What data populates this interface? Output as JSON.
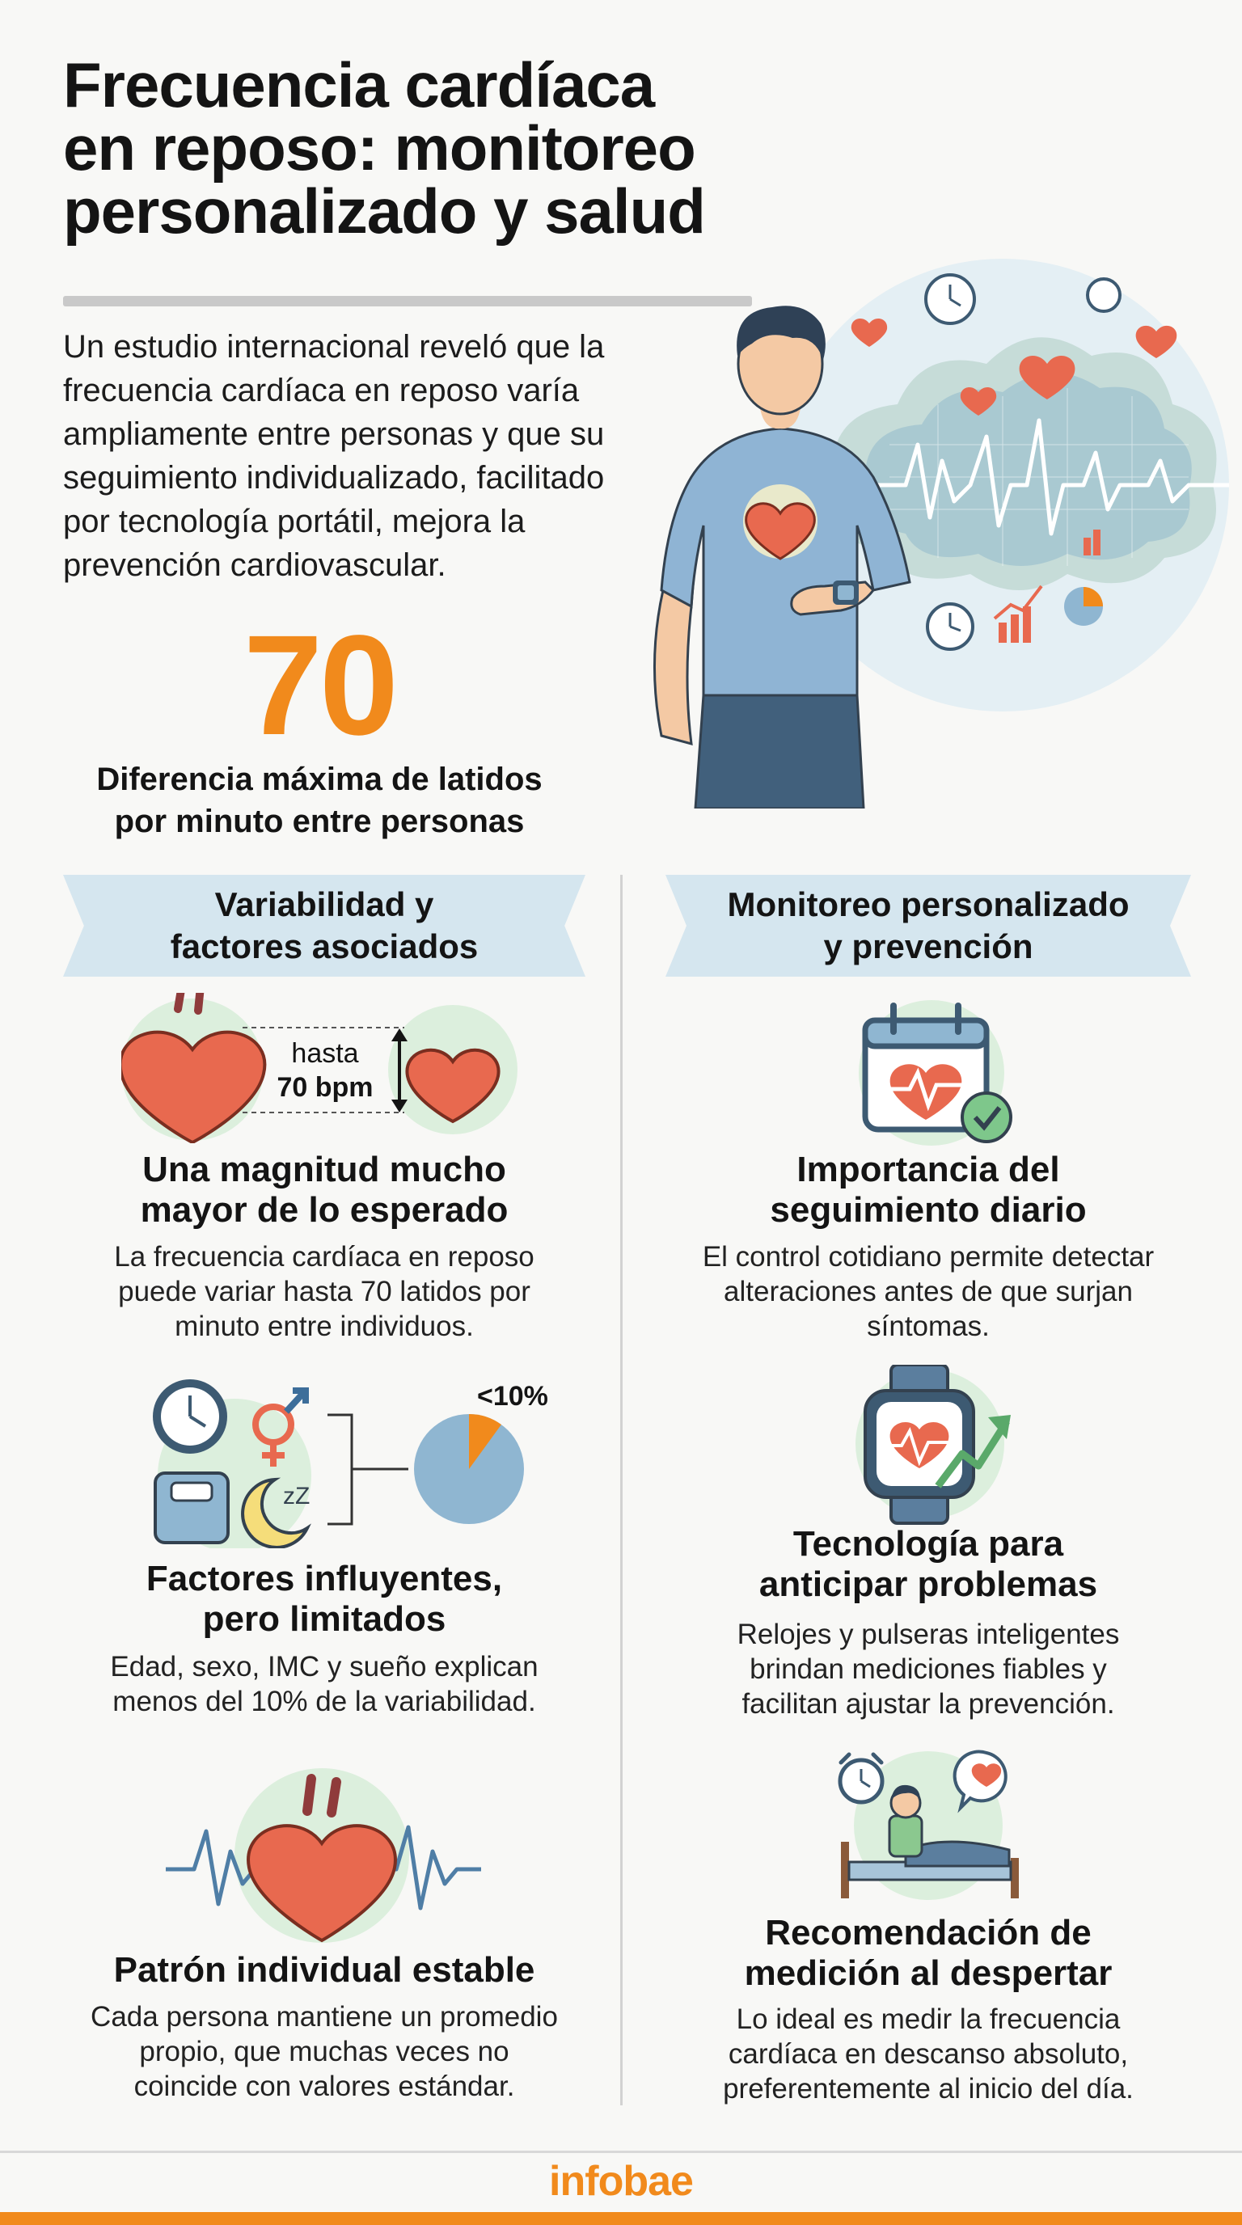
{
  "title": {
    "lines": [
      "Frecuencia cardíaca",
      "en reposo: monitoreo",
      "personalizado y salud"
    ]
  },
  "intro": {
    "lines": [
      "Un estudio internacional reveló que la",
      "frecuencia cardíaca en reposo varía",
      "ampliamente entre personas y que su",
      "seguimiento individualizado, facilitado",
      "por tecnología portátil, mejora la",
      "prevención cardiovascular."
    ]
  },
  "stat": {
    "value": "70",
    "caption_lines": [
      "Diferencia máxima de latidos",
      "por minuto entre personas"
    ]
  },
  "left_column": {
    "header_lines": [
      "Variabilidad y",
      "factores asociados"
    ],
    "cards": [
      {
        "illustration": {
          "label_top": "hasta",
          "label_bottom": "70 bpm"
        },
        "title_lines": [
          "Una magnitud mucho",
          "mayor de lo esperado"
        ],
        "body_lines": [
          "La frecuencia cardíaca en reposo",
          "puede variar hasta 70 latidos por",
          "minuto entre individuos."
        ]
      },
      {
        "illustration": {
          "pie_label": "<10%",
          "pie_fraction": 0.1
        },
        "title_lines": [
          "Factores influyentes,",
          "pero limitados"
        ],
        "body_lines": [
          "Edad, sexo, IMC y sueño explican",
          "menos del 10% de la variabilidad."
        ]
      },
      {
        "title_lines": [
          "Patrón individual estable"
        ],
        "body_lines": [
          "Cada persona mantiene un promedio",
          "propio, que muchas veces no",
          "coincide con valores estándar."
        ]
      }
    ]
  },
  "right_column": {
    "header_lines": [
      "Monitoreo personalizado",
      "y prevención"
    ],
    "cards": [
      {
        "title_lines": [
          "Importancia del",
          "seguimiento diario"
        ],
        "body_lines": [
          "El control cotidiano permite detectar",
          "alteraciones antes de que surjan",
          "síntomas."
        ]
      },
      {
        "title_lines": [
          "Tecnología para",
          "anticipar problemas"
        ],
        "body_lines": [
          "Relojes y pulseras inteligentes",
          "brindan mediciones fiables y",
          "facilitan ajustar la prevención."
        ]
      },
      {
        "title_lines": [
          "Recomendación de",
          "medición al despertar"
        ],
        "body_lines": [
          "Lo ideal es medir la frecuencia",
          "cardíaca en descanso absoluto,",
          "preferentemente al inicio del día."
        ]
      }
    ]
  },
  "footer": {
    "logo": "infobae"
  },
  "colors": {
    "accent": "#f18a1c",
    "banner": "#d5e6ef",
    "heart": "#e8694f",
    "circle_bg": "#dcefdd",
    "pie_base": "#8fb6d1"
  },
  "icons": [
    "man-smartwatch-icon",
    "heart-icon",
    "clock-icon",
    "gender-icon",
    "scale-icon",
    "moon-sleep-icon",
    "pie-chart-icon",
    "calendar-heart-icon",
    "smartwatch-icon",
    "alarm-clock-icon",
    "bed-icon",
    "ecg-wave-icon"
  ]
}
